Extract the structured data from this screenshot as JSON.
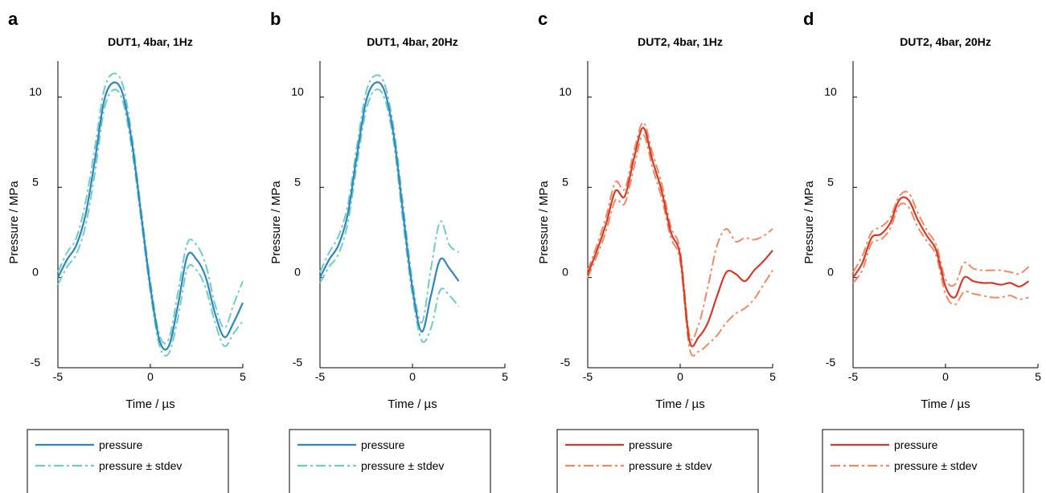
{
  "chart_data": [
    {
      "type": "line",
      "panel_label": "a",
      "title": "DUT1, 4bar, 1Hz",
      "xlabel": "Time / µs",
      "ylabel": "Pressure / MPa",
      "xlim": [
        -5,
        5
      ],
      "ylim": [
        -5,
        12
      ],
      "xticks": [
        -5,
        0,
        5
      ],
      "yticks": [
        -5,
        0,
        5,
        10
      ],
      "grid": false,
      "legend_position": "bottom",
      "series": [
        {
          "name": "pressure",
          "style": "solid",
          "color": "#2e86c1",
          "x": [
            -5,
            -4.5,
            -4,
            -3.5,
            -3,
            -2.5,
            -2,
            -1.5,
            -1,
            -0.5,
            0,
            0.5,
            1,
            1.5,
            2,
            2.5,
            3,
            3.5,
            4,
            4.5,
            5
          ],
          "y": [
            0,
            1,
            1.8,
            3.5,
            6.5,
            9.8,
            10.8,
            10.2,
            7.5,
            3.5,
            -0.5,
            -3.5,
            -3.8,
            -1.5,
            1.2,
            1,
            0,
            -2,
            -3.3,
            -2.5,
            -1.4
          ]
        },
        {
          "name": "pressure ± stdev",
          "style": "dashdot",
          "color": "#6ccfc4",
          "x": [
            -5,
            -4.5,
            -4,
            -3.5,
            -3,
            -2.5,
            -2,
            -1.5,
            -1,
            -0.5,
            0,
            0.5,
            1,
            1.5,
            2,
            2.5,
            3,
            3.5,
            4,
            4.5,
            5
          ],
          "y": [
            0.3,
            1.4,
            2.2,
            4.2,
            7.2,
            10.4,
            11.3,
            10.7,
            7.9,
            3.8,
            -0.2,
            -3.2,
            -3.4,
            -0.8,
            1.9,
            1.8,
            0.7,
            -1.5,
            -2.8,
            -1.5,
            -0.2
          ]
        },
        {
          "name": "",
          "style": "dashdot",
          "color": "#6ccfc4",
          "x": [
            -5,
            -4.5,
            -4,
            -3.5,
            -3,
            -2.5,
            -2,
            -1.5,
            -1,
            -0.5,
            0,
            0.5,
            1,
            1.5,
            2,
            2.5,
            3,
            3.5,
            4,
            4.5,
            5
          ],
          "y": [
            -0.4,
            0.6,
            1.3,
            2.9,
            5.8,
            9.3,
            10.4,
            9.8,
            7.1,
            3.2,
            -0.8,
            -3.8,
            -4.2,
            -2.2,
            0.5,
            0.4,
            -0.6,
            -2.5,
            -3.8,
            -3.1,
            -2.4
          ]
        }
      ]
    },
    {
      "type": "line",
      "panel_label": "b",
      "title": "DUT1, 4bar, 20Hz",
      "xlabel": "Time / µs",
      "ylabel": "Pressure / MPa",
      "xlim": [
        -5,
        5
      ],
      "ylim": [
        -5,
        12
      ],
      "xticks": [
        -5,
        0,
        5
      ],
      "yticks": [
        -5,
        0,
        5,
        10
      ],
      "grid": false,
      "legend_position": "bottom",
      "series": [
        {
          "name": "pressure",
          "style": "solid",
          "color": "#2e86c1",
          "x": [
            -5,
            -4.5,
            -4,
            -3.5,
            -3,
            -2.5,
            -2,
            -1.5,
            -1,
            -0.5,
            0,
            0.5,
            1,
            1.5,
            2,
            2.5
          ],
          "y": [
            0,
            1,
            1.8,
            3.5,
            6.8,
            9.8,
            10.8,
            10.3,
            7.8,
            3.5,
            -0.6,
            -3,
            -1,
            1,
            0.5,
            -0.2
          ]
        },
        {
          "name": "pressure ± stdev",
          "style": "dashdot",
          "color": "#6ccfc4",
          "x": [
            -5,
            -4.5,
            -4,
            -3.5,
            -3,
            -2.5,
            -2,
            -1.5,
            -1,
            -0.5,
            0,
            0.5,
            1,
            1.5,
            2,
            2.5
          ],
          "y": [
            0.3,
            1.4,
            2.3,
            4,
            7.3,
            10.3,
            11.2,
            10.7,
            8.2,
            4,
            -0.2,
            -2.5,
            0.5,
            3.1,
            1.8,
            1.4
          ]
        },
        {
          "name": "",
          "style": "dashdot",
          "color": "#6ccfc4",
          "x": [
            -5,
            -4.5,
            -4,
            -3.5,
            -3,
            -2.5,
            -2,
            -1.5,
            -1,
            -0.5,
            0,
            0.5,
            1,
            1.5,
            2,
            2.5
          ],
          "y": [
            -0.3,
            0.6,
            1.3,
            3,
            6.3,
            9.3,
            10.4,
            9.9,
            7.4,
            3,
            -1,
            -3.5,
            -2.8,
            -0.7,
            -1,
            -1.6
          ]
        }
      ]
    },
    {
      "type": "line",
      "panel_label": "c",
      "title": "DUT2, 4bar, 1Hz",
      "xlabel": "Time / µs",
      "ylabel": "Pressure / MPa",
      "xlim": [
        -5,
        5
      ],
      "ylim": [
        -5,
        12
      ],
      "xticks": [
        -5,
        0,
        5
      ],
      "yticks": [
        -5,
        0,
        5,
        10
      ],
      "grid": false,
      "legend_position": "bottom",
      "series": [
        {
          "name": "pressure",
          "style": "solid",
          "color": "#d73a27",
          "x": [
            -5,
            -4.5,
            -4,
            -3.5,
            -3,
            -2.5,
            -2,
            -1.5,
            -1,
            -0.5,
            0,
            0.5,
            1,
            1.5,
            2,
            2.5,
            3,
            3.5,
            4,
            4.5,
            5
          ],
          "y": [
            0.2,
            1.5,
            3,
            4.8,
            4.5,
            6.6,
            8.3,
            6.5,
            4.8,
            2.5,
            1.2,
            -3.5,
            -3.3,
            -2.5,
            -1,
            0.3,
            0.2,
            -0.2,
            0.4,
            0.9,
            1.5
          ]
        },
        {
          "name": "pressure ± stdev",
          "style": "dashdot",
          "color": "#f4895f",
          "x": [
            -5,
            -4.5,
            -4,
            -3.5,
            -3,
            -2.5,
            -2,
            -1.5,
            -1,
            -0.5,
            0,
            0.5,
            1,
            1.5,
            2,
            2.5,
            3,
            3.5,
            4,
            4.5,
            5
          ],
          "y": [
            0.4,
            1.8,
            3.4,
            5.3,
            4.9,
            7,
            8.6,
            6.9,
            5.2,
            2.8,
            1.5,
            -3.2,
            -2.6,
            -0.5,
            1.8,
            2.7,
            2,
            2.2,
            2.1,
            2.3,
            2.7
          ]
        },
        {
          "name": "",
          "style": "dashdot",
          "color": "#f4895f",
          "x": [
            -5,
            -4.5,
            -4,
            -3.5,
            -3,
            -2.5,
            -2,
            -1.5,
            -1,
            -0.5,
            0,
            0.5,
            1,
            1.5,
            2,
            2.5,
            3,
            3.5,
            4,
            4.5,
            5
          ],
          "y": [
            0,
            1.2,
            2.6,
            4.3,
            4.1,
            6.1,
            7.9,
            6.1,
            4.4,
            2.2,
            0.9,
            -3.9,
            -4.1,
            -3.7,
            -3.2,
            -2.5,
            -2,
            -1.7,
            -1.2,
            -0.4,
            0.4
          ]
        }
      ]
    },
    {
      "type": "line",
      "panel_label": "d",
      "title": "DUT2, 4bar, 20Hz",
      "xlabel": "Time / µs",
      "ylabel": "Pressure / MPa",
      "xlim": [
        -5,
        5
      ],
      "ylim": [
        -5,
        12
      ],
      "xticks": [
        -5,
        0,
        5
      ],
      "yticks": [
        -5,
        0,
        5,
        10
      ],
      "grid": false,
      "legend_position": "bottom",
      "series": [
        {
          "name": "pressure",
          "style": "solid",
          "color": "#d73a27",
          "x": [
            -5,
            -4.5,
            -4,
            -3.5,
            -3,
            -2.5,
            -2,
            -1.5,
            -1,
            -0.5,
            0,
            0.5,
            1,
            1.5,
            2,
            2.5,
            3,
            3.5,
            4,
            4.5
          ],
          "y": [
            0,
            0.8,
            2.2,
            2.4,
            3,
            4.3,
            4.3,
            3.2,
            2.3,
            1.5,
            -0.5,
            -1.1,
            0,
            -0.2,
            -0.3,
            -0.3,
            -0.4,
            -0.3,
            -0.5,
            -0.2
          ]
        },
        {
          "name": "pressure ± stdev",
          "style": "dashdot",
          "color": "#f4895f",
          "x": [
            -5,
            -4.5,
            -4,
            -3.5,
            -3,
            -2.5,
            -2,
            -1.5,
            -1,
            -0.5,
            0,
            0.5,
            1,
            1.5,
            2,
            2.5,
            3,
            3.5,
            4,
            4.5
          ],
          "y": [
            0.3,
            1.2,
            2.5,
            2.8,
            3.3,
            4.5,
            4.7,
            3.6,
            2.6,
            1.8,
            -0.1,
            -0.4,
            0.8,
            0.5,
            0.4,
            0.4,
            0.4,
            0.3,
            0.2,
            0.6
          ]
        },
        {
          "name": "",
          "style": "dashdot",
          "color": "#f4895f",
          "x": [
            -5,
            -4.5,
            -4,
            -3.5,
            -3,
            -2.5,
            -2,
            -1.5,
            -1,
            -0.5,
            0,
            0.5,
            1,
            1.5,
            2,
            2.5,
            3,
            3.5,
            4,
            4.5
          ],
          "y": [
            -0.3,
            0.4,
            1.9,
            2.1,
            2.7,
            4,
            3.9,
            2.8,
            2,
            1.2,
            -0.9,
            -1.5,
            -0.8,
            -0.9,
            -1,
            -1.1,
            -1.1,
            -1,
            -1.2,
            -1.1
          ]
        }
      ]
    }
  ]
}
